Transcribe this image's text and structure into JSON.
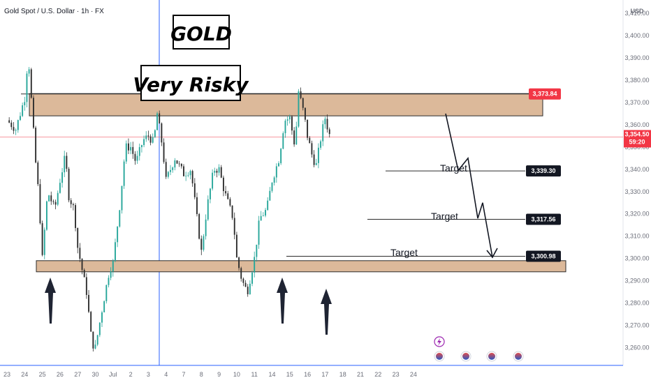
{
  "symbol_title": "Gold Spot / U.S. Dollar · 1h · FX",
  "currency_label": "USD",
  "headline": "GOLD",
  "subheadline": "Very Risky",
  "target_label": "Target",
  "current_price": "3,354.50",
  "countdown": "59:20",
  "colors": {
    "up": "#26a69a",
    "down": "#2e2e2e",
    "zone_fill": "#dcb99a",
    "zone_stroke": "#2b2b2b",
    "current_price": "#f23645",
    "resistance_tag": "#f23645",
    "target_tag": "#131722",
    "arrow": "#1f2433",
    "axis_text": "#6a6d78"
  },
  "icons": [
    "lightning-event-icon",
    "us-flag-event-icon",
    "us-flag-event-icon",
    "us-flag-event-icon",
    "us-flag-event-icon"
  ],
  "chart_data": {
    "type": "candlestick",
    "series_name": "Gold Spot / U.S. Dollar",
    "timeframe": "1h",
    "ylim": [
      3252,
      3416
    ],
    "y_ticks": [
      3260,
      3270,
      3280,
      3290,
      3300,
      3310,
      3320,
      3330,
      3340,
      3350,
      3360,
      3370,
      3380,
      3390,
      3400,
      3410
    ],
    "y_tick_labels": [
      "3,260.00",
      "3,270.00",
      "3,280.00",
      "3,290.00",
      "3,300.00",
      "3,310.00",
      "3,320.00",
      "3,330.00",
      "3,340.00",
      "3,350.00",
      "3,360.00",
      "3,370.00",
      "3,380.00",
      "3,390.00",
      "3,400.00",
      "3,410.00"
    ],
    "x_ticks": [
      "23",
      "24",
      "25",
      "26",
      "27",
      "30",
      "Jul",
      "2",
      "3",
      "4",
      "7",
      "8",
      "9",
      "10",
      "11",
      "14",
      "15",
      "16",
      "17",
      "18",
      "21",
      "22",
      "23",
      "24"
    ],
    "path": [
      [
        23,
        3362
      ],
      [
        23.5,
        3358
      ],
      [
        24,
        3372
      ],
      [
        24.2,
        3392
      ],
      [
        24.6,
        3345
      ],
      [
        24.8,
        3328
      ],
      [
        25,
        3300
      ],
      [
        25.3,
        3330
      ],
      [
        25.7,
        3322
      ],
      [
        26,
        3335
      ],
      [
        26.3,
        3346
      ],
      [
        26.5,
        3328
      ],
      [
        26.8,
        3322
      ],
      [
        27,
        3305
      ],
      [
        27.5,
        3285
      ],
      [
        27.8,
        3262
      ],
      [
        28,
        3260
      ],
      [
        28.4,
        3278
      ],
      [
        28.8,
        3295
      ],
      [
        29,
        3298
      ],
      [
        29.4,
        3325
      ],
      [
        29.7,
        3350
      ],
      [
        30,
        3350
      ],
      [
        30.3,
        3343
      ],
      [
        30.7,
        3353
      ],
      [
        31,
        3355
      ],
      [
        31.3,
        3352
      ],
      [
        31.5,
        3365
      ],
      [
        31.8,
        3350
      ],
      [
        32,
        3335
      ],
      [
        32.5,
        3345
      ],
      [
        33,
        3338
      ],
      [
        33.4,
        3340
      ],
      [
        33.8,
        3315
      ],
      [
        34,
        3303
      ],
      [
        34.3,
        3322
      ],
      [
        34.7,
        3340
      ],
      [
        35,
        3340
      ],
      [
        35.3,
        3330
      ],
      [
        35.8,
        3318
      ],
      [
        36,
        3300
      ],
      [
        36.3,
        3290
      ],
      [
        36.6,
        3285
      ],
      [
        37,
        3300
      ],
      [
        37.3,
        3318
      ],
      [
        37.7,
        3322
      ],
      [
        38,
        3335
      ],
      [
        38.4,
        3345
      ],
      [
        38.7,
        3362
      ],
      [
        39,
        3363
      ],
      [
        39.3,
        3350
      ],
      [
        39.5,
        3375
      ],
      [
        39.8,
        3365
      ],
      [
        40,
        3355
      ],
      [
        40.3,
        3345
      ],
      [
        40.5,
        3342
      ],
      [
        40.8,
        3356
      ],
      [
        41,
        3363
      ],
      [
        41.3,
        3354
      ]
    ],
    "resistance_zone": [
      3364,
      3374
    ],
    "support_zone": [
      3294,
      3299
    ],
    "current_price": 3354.5,
    "annotations": [
      {
        "label": "3,373.84",
        "value": 3373.84,
        "kind": "resistance"
      },
      {
        "label": "3,339.30",
        "value": 3339.3,
        "kind": "target"
      },
      {
        "label": "3,317.56",
        "value": 3317.56,
        "kind": "target"
      },
      {
        "label": "3,300.98",
        "value": 3300.98,
        "kind": "target"
      }
    ]
  }
}
